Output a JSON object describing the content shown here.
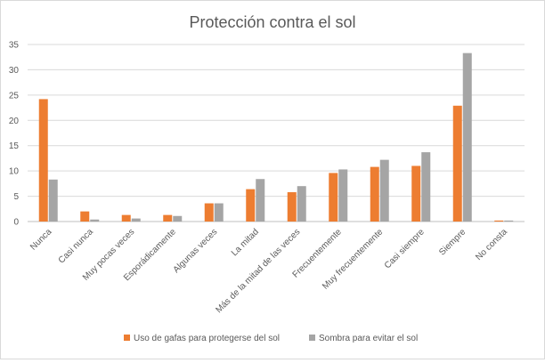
{
  "chart_data": {
    "type": "bar",
    "title": "Protección contra el sol",
    "xlabel": "",
    "ylabel": "",
    "ylim": [
      0,
      35
    ],
    "yticks": [
      0,
      5,
      10,
      15,
      20,
      25,
      30,
      35
    ],
    "grid": true,
    "legend_position": "bottom",
    "categories": [
      "Nunca",
      "Casi nunca",
      "Muy pocas veces",
      "Esporádicamente",
      "Algunas veces",
      "La mitad",
      "Más de la mitad de las veces",
      "Frecuentemente",
      "Muy frecuentemente",
      "Casi siempre",
      "Siempre",
      "No consta"
    ],
    "series": [
      {
        "name": "Uso de gafas para protegerse del sol",
        "color": "#ed7d31",
        "values": [
          24.2,
          2.0,
          1.3,
          1.3,
          3.6,
          6.4,
          5.8,
          9.6,
          10.8,
          11.0,
          22.9,
          0.2
        ]
      },
      {
        "name": "Sombra para evitar el sol",
        "color": "#a5a5a5",
        "values": [
          8.3,
          0.4,
          0.6,
          1.1,
          3.6,
          8.4,
          7.0,
          10.3,
          12.2,
          13.7,
          33.3,
          0.2
        ]
      }
    ]
  }
}
